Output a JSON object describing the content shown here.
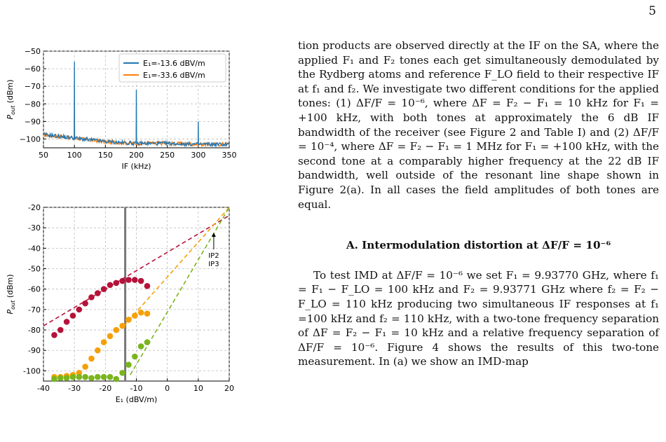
{
  "page_number": "5",
  "text": {
    "p1": "tion products are observed directly at the IF on the SA, where the applied F₁ and F₂ tones each get simultaneously demodulated by the Rydberg atoms and reference F_LO field to their respective IF at f₁ and f₂. We investigate two different conditions for the applied tones: (1) ΔF/F = 10⁻⁶, where ΔF = F₂ − F₁ = 10 kHz for F₁ = +100 kHz, with both tones at approximately the 6 dB IF bandwidth of the receiver (see Figure 2 and Table I) and (2) ΔF/F = 10⁻⁴, where ΔF = F₂ − F₁ = 1 MHz for F₁ = +100 kHz, with the second tone at a comparably higher frequency at the 22 dB IF bandwidth, well outside of the resonant line shape shown in Figure 2(a). In all cases the field amplitudes of both tones are equal.",
    "section_heading": "A.   Intermodulation distortion at ΔF/F = 10⁻⁶",
    "p2": "To test IMD at ΔF/F = 10⁻⁶ we set F₁ = 9.93770 GHz, where f₁ = F₁ − F_LO = 100 kHz and F₂ = 9.93771 GHz where f₂ = F₂ − F_LO = 110 kHz producing two simultaneous IF responses at f₁ =100 kHz and f₂ = 110 kHz, with a two-tone frequency separation of ΔF = F₂ − F₁ = 10 kHz and a relative frequency separation of ΔF/F = 10⁻⁶. Figure 4 shows the results of this two-tone measurement. In (a) we show an IMD-map"
  },
  "chart_data": [
    {
      "type": "line",
      "xlabel": "IF (kHz)",
      "ylabel": "P_out (dBm)",
      "xlim": [
        50,
        350
      ],
      "ylim": [
        -105,
        -50
      ],
      "xticks": [
        "50",
        "100",
        "150",
        "200",
        "250",
        "300",
        "350"
      ],
      "yticks": [
        "−50",
        "−60",
        "−70",
        "−80",
        "−90",
        "−100"
      ],
      "grid": true,
      "legend_position": "top-right",
      "series": [
        {
          "name": "E₁=-13.6 dBV/m",
          "color": "#1f77b4",
          "peaks": [
            {
              "x": 100,
              "y": -56
            },
            {
              "x": 200,
              "y": -72
            },
            {
              "x": 300,
              "y": -90
            }
          ],
          "floor": [
            [
              50,
              -97.5
            ],
            [
              100,
              -99.5
            ],
            [
              150,
              -101.5
            ],
            [
              200,
              -102.5
            ],
            [
              250,
              -102.5
            ],
            [
              300,
              -103
            ],
            [
              350,
              -103
            ]
          ]
        },
        {
          "name": "E₁=-33.6 dBV/m",
          "color": "#ff7f0e",
          "peaks": [
            {
              "x": 100,
              "y": -74
            }
          ],
          "floor": [
            [
              50,
              -97.5
            ],
            [
              100,
              -99.5
            ],
            [
              150,
              -101.5
            ],
            [
              200,
              -102.5
            ],
            [
              250,
              -102.5
            ],
            [
              300,
              -103
            ],
            [
              350,
              -103
            ]
          ]
        }
      ]
    },
    {
      "type": "scatter",
      "xlabel": "E₁ (dBV/m)",
      "ylabel": "P_out (dBm)",
      "xlim": [
        -40,
        20
      ],
      "ylim": [
        -105,
        -20
      ],
      "xticks": [
        "-40",
        "-30",
        "-20",
        "-10",
        "0",
        "10",
        "20"
      ],
      "yticks": [
        "-20",
        "-30",
        "-40",
        "-50",
        "-60",
        "-70",
        "-80",
        "-90",
        "-100"
      ],
      "grid": true,
      "vertical_line_x": -13.6,
      "annotation": {
        "lines": [
          "IP2",
          "IP3"
        ],
        "arrow_to": [
          15,
          -31
        ]
      },
      "series": [
        {
          "color": "#b5123a",
          "points": [
            [
              -36.5,
              -82.5
            ],
            [
              -34.5,
              -80
            ],
            [
              -32.5,
              -76
            ],
            [
              -30.5,
              -73
            ],
            [
              -28.5,
              -70
            ],
            [
              -26.5,
              -67
            ],
            [
              -24.5,
              -64
            ],
            [
              -22.5,
              -62
            ],
            [
              -20.5,
              -60
            ],
            [
              -18.5,
              -58
            ],
            [
              -16.5,
              -57
            ],
            [
              -14.5,
              -56
            ],
            [
              -12.5,
              -55.5
            ],
            [
              -10.5,
              -55.5
            ],
            [
              -8.5,
              -56
            ],
            [
              -6.5,
              -58.5
            ]
          ],
          "fit": [
            [
              -40,
              -78
            ],
            [
              20,
              -24
            ]
          ]
        },
        {
          "color": "#f5a007",
          "points": [
            [
              -36.5,
              -103
            ],
            [
              -34.5,
              -103
            ],
            [
              -32.5,
              -102.5
            ],
            [
              -30.5,
              -102
            ],
            [
              -28.5,
              -101
            ],
            [
              -26.5,
              -98
            ],
            [
              -24.5,
              -94
            ],
            [
              -22.5,
              -90
            ],
            [
              -20.5,
              -86
            ],
            [
              -18.5,
              -83
            ],
            [
              -16.5,
              -80
            ],
            [
              -14.5,
              -78
            ],
            [
              -12.5,
              -75
            ],
            [
              -10.5,
              -73
            ],
            [
              -8.5,
              -71.5
            ],
            [
              -6.5,
              -72
            ]
          ],
          "fit": [
            [
              -14,
              -78
            ],
            [
              20,
              -20
            ]
          ]
        },
        {
          "color": "#7ab51d",
          "points": [
            [
              -36.5,
              -104
            ],
            [
              -34.5,
              -103.5
            ],
            [
              -32.5,
              -103.5
            ],
            [
              -30.5,
              -103
            ],
            [
              -28.5,
              -103
            ],
            [
              -26.5,
              -103
            ],
            [
              -24.5,
              -103.5
            ],
            [
              -22.5,
              -103
            ],
            [
              -20.5,
              -103
            ],
            [
              -18.5,
              -103
            ],
            [
              -16.5,
              -104
            ],
            [
              -14.5,
              -101
            ],
            [
              -12.5,
              -97
            ],
            [
              -10.5,
              -93
            ],
            [
              -8.5,
              -88
            ],
            [
              -6.5,
              -86
            ]
          ],
          "fit": [
            [
              -12,
              -102
            ],
            [
              20,
              -20
            ]
          ]
        }
      ]
    }
  ]
}
